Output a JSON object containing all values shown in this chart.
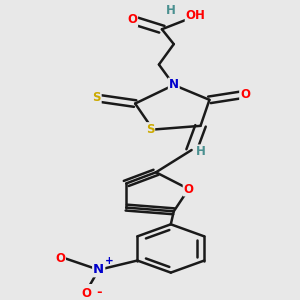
{
  "bg_color": "#e8e8e8",
  "bond_color": "#1a1a1a",
  "bond_width": 1.8,
  "atom_colors": {
    "O": "#ff0000",
    "N": "#0000cc",
    "S": "#ccaa00",
    "H": "#4a9090",
    "C": "#1a1a1a"
  },
  "font_size": 8.5,
  "fig_size": [
    3.0,
    3.0
  ],
  "dpi": 100
}
